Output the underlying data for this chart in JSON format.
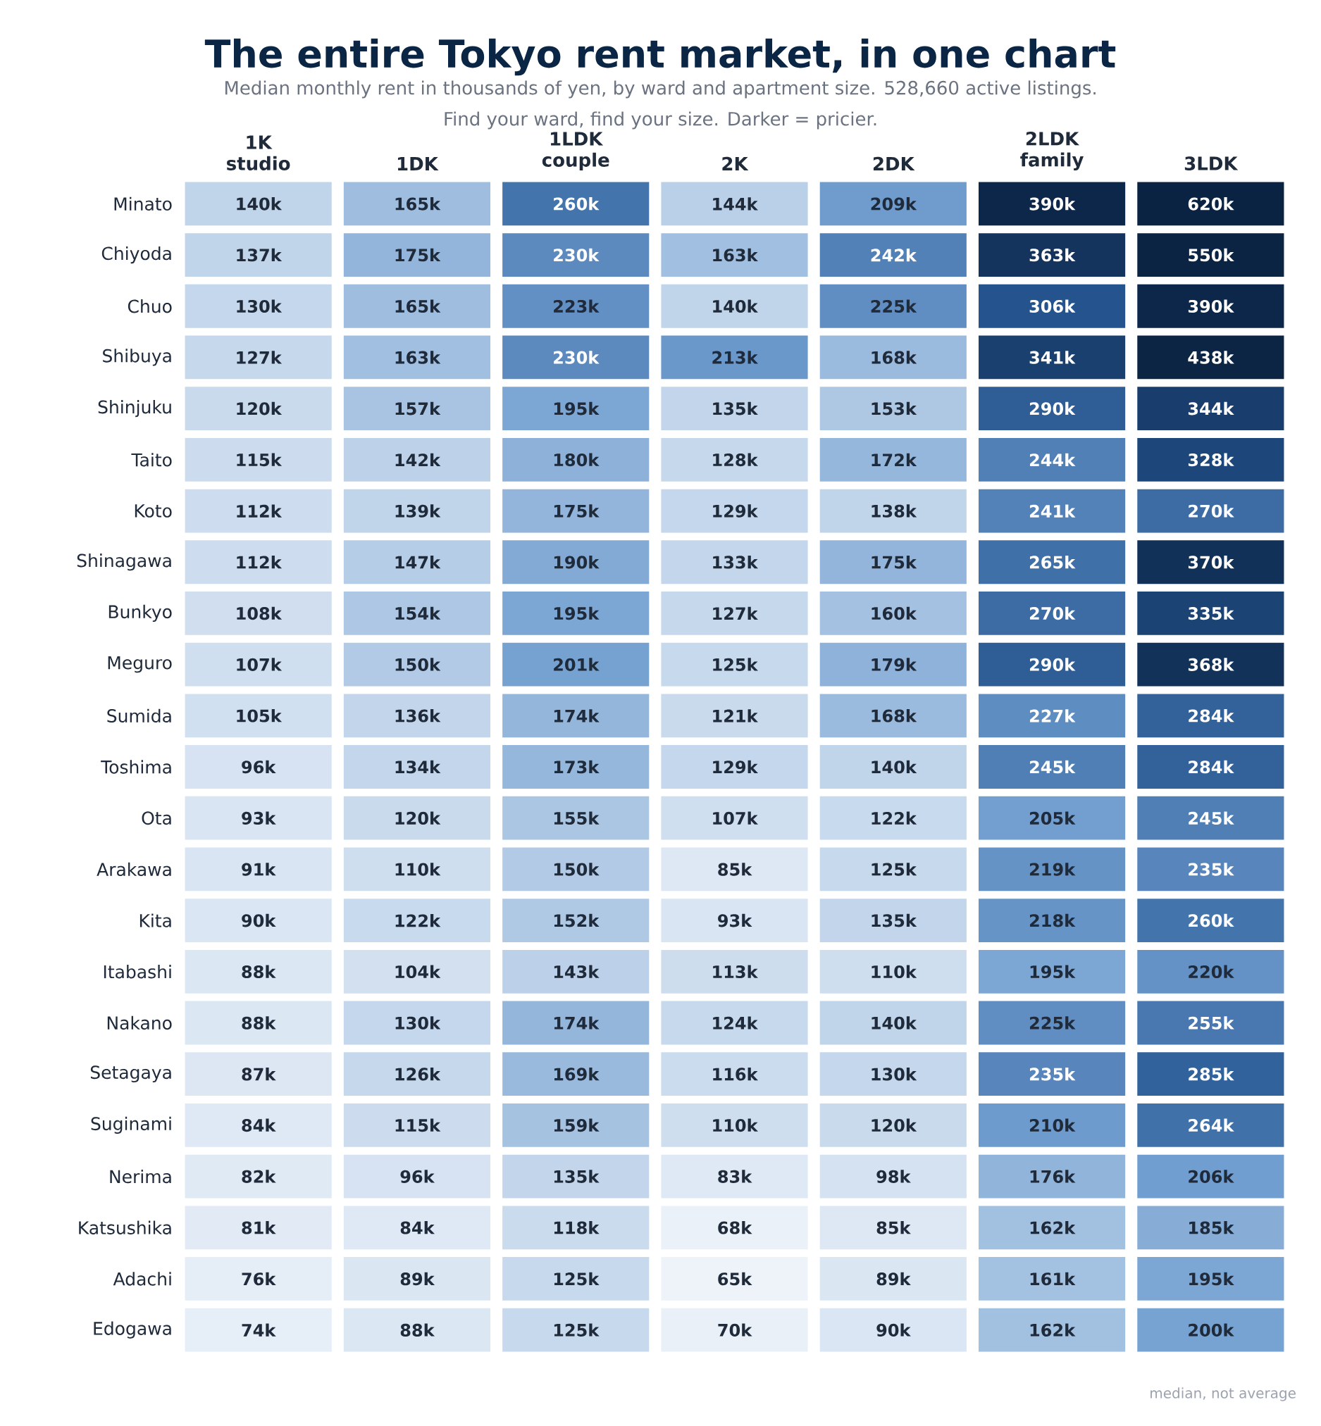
{
  "chart_data": {
    "type": "heatmap",
    "title": "The entire Tokyo rent market, in one chart",
    "subtitle": "Median monthly rent in thousands of yen, by ward and apartment size. 528,660 active listings.",
    "annotations": [
      "Find your ward, find your size. Darker = pricier.",
      "median, not average"
    ],
    "categories": [
      "1K studio",
      "1DK",
      "1LDK couple",
      "2K",
      "2DK",
      "2LDK family",
      "3LDK"
    ],
    "y_categories": [
      "Minato",
      "Chiyoda",
      "Chuo",
      "Shibuya",
      "Shinjuku",
      "Taito",
      "Koto",
      "Shinagawa",
      "Bunkyo",
      "Meguro",
      "Sumida",
      "Toshima",
      "Ota",
      "Arakawa",
      "Kita",
      "Itabashi",
      "Nakano",
      "Setagaya",
      "Suginami",
      "Nerima",
      "Katsushika",
      "Adachi",
      "Edogawa"
    ],
    "cells": [
      [
        140,
        165,
        260,
        144,
        209,
        390,
        620
      ],
      [
        137,
        175,
        230,
        163,
        242,
        363,
        550
      ],
      [
        130,
        165,
        223,
        140,
        225,
        306,
        390
      ],
      [
        127,
        163,
        230,
        213,
        168,
        341,
        438
      ],
      [
        120,
        157,
        195,
        135,
        153,
        290,
        344
      ],
      [
        115,
        142,
        180,
        128,
        172,
        244,
        328
      ],
      [
        112,
        139,
        175,
        129,
        138,
        241,
        270
      ],
      [
        112,
        147,
        190,
        133,
        175,
        265,
        370
      ],
      [
        108,
        154,
        195,
        127,
        160,
        270,
        335
      ],
      [
        107,
        150,
        201,
        125,
        179,
        290,
        368
      ],
      [
        105,
        136,
        174,
        121,
        168,
        227,
        284
      ],
      [
        96,
        134,
        173,
        129,
        140,
        245,
        284
      ],
      [
        93,
        120,
        155,
        107,
        122,
        205,
        245
      ],
      [
        91,
        110,
        150,
        85,
        125,
        219,
        235
      ],
      [
        90,
        122,
        152,
        93,
        135,
        218,
        260
      ],
      [
        88,
        104,
        143,
        113,
        110,
        195,
        220
      ],
      [
        88,
        130,
        174,
        124,
        140,
        225,
        255
      ],
      [
        87,
        126,
        169,
        116,
        130,
        235,
        285
      ],
      [
        84,
        115,
        159,
        110,
        120,
        210,
        264
      ],
      [
        82,
        96,
        135,
        83,
        98,
        176,
        206
      ],
      [
        81,
        84,
        118,
        68,
        85,
        162,
        185
      ],
      [
        76,
        89,
        125,
        65,
        89,
        161,
        195
      ],
      [
        74,
        88,
        125,
        70,
        90,
        162,
        200
      ]
    ],
    "cell_labels": [
      [
        "140k",
        "165k",
        "260k",
        "144k",
        "209k",
        "390k",
        "620k"
      ],
      [
        "137k",
        "175k",
        "230k",
        "163k",
        "242k",
        "363k",
        "550k"
      ],
      [
        "130k",
        "165k",
        "223k",
        "140k",
        "225k",
        "306k",
        "390k"
      ],
      [
        "127k",
        "163k",
        "230k",
        "213k",
        "168k",
        "341k",
        "438k"
      ],
      [
        "120k",
        "157k",
        "195k",
        "135k",
        "153k",
        "290k",
        "344k"
      ],
      [
        "115k",
        "142k",
        "180k",
        "128k",
        "172k",
        "244k",
        "328k"
      ],
      [
        "112k",
        "139k",
        "175k",
        "129k",
        "138k",
        "241k",
        "270k"
      ],
      [
        "112k",
        "147k",
        "190k",
        "133k",
        "175k",
        "265k",
        "370k"
      ],
      [
        "108k",
        "154k",
        "195k",
        "127k",
        "160k",
        "270k",
        "335k"
      ],
      [
        "107k",
        "150k",
        "201k",
        "125k",
        "179k",
        "290k",
        "368k"
      ],
      [
        "105k",
        "136k",
        "174k",
        "121k",
        "168k",
        "227k",
        "284k"
      ],
      [
        "96k",
        "134k",
        "173k",
        "129k",
        "140k",
        "245k",
        "284k"
      ],
      [
        "93k",
        "120k",
        "155k",
        "107k",
        "122k",
        "205k",
        "245k"
      ],
      [
        "91k",
        "110k",
        "150k",
        "85k",
        "125k",
        "219k",
        "235k"
      ],
      [
        "90k",
        "122k",
        "152k",
        "93k",
        "135k",
        "218k",
        "260k"
      ],
      [
        "88k",
        "104k",
        "143k",
        "113k",
        "110k",
        "195k",
        "220k"
      ],
      [
        "88k",
        "130k",
        "174k",
        "124k",
        "140k",
        "225k",
        "255k"
      ],
      [
        "87k",
        "126k",
        "169k",
        "116k",
        "130k",
        "235k",
        "285k"
      ],
      [
        "84k",
        "115k",
        "159k",
        "110k",
        "120k",
        "210k",
        "264k"
      ],
      [
        "82k",
        "96k",
        "135k",
        "83k",
        "98k",
        "176k",
        "206k"
      ],
      [
        "81k",
        "84k",
        "118k",
        "68k",
        "85k",
        "162k",
        "185k"
      ],
      [
        "76k",
        "89k",
        "125k",
        "65k",
        "89k",
        "161k",
        "195k"
      ],
      [
        "74k",
        "88k",
        "125k",
        "70k",
        "90k",
        "162k",
        "200k"
      ]
    ]
  }
}
